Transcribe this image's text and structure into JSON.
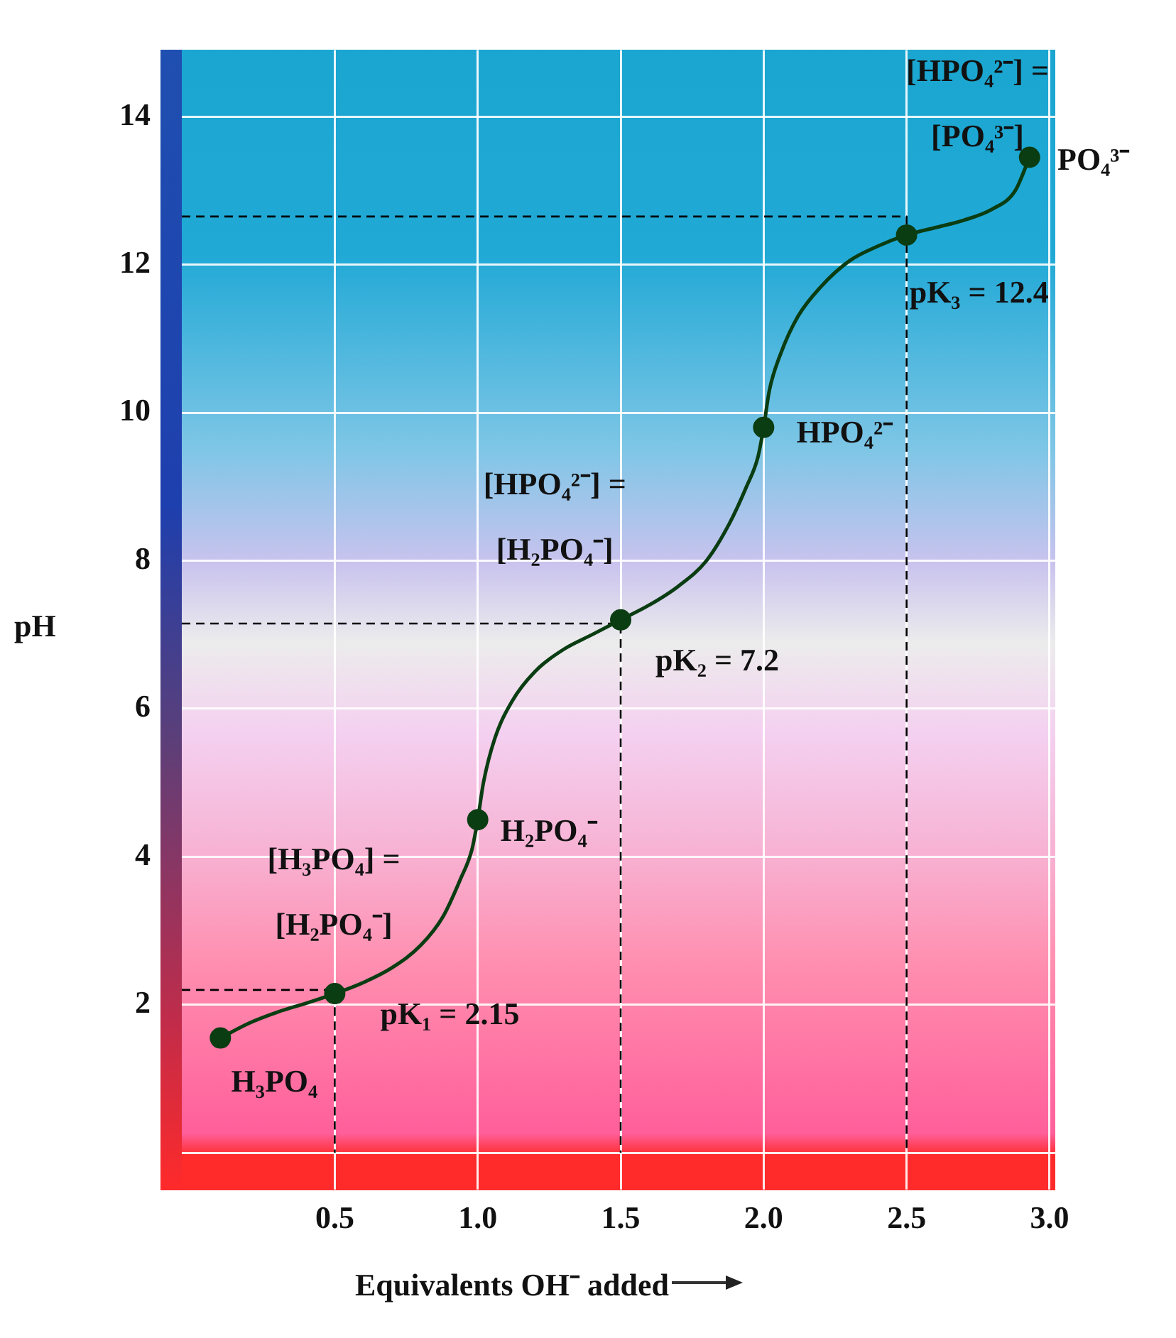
{
  "chart_data": {
    "type": "line",
    "xlabel": "Equivalents OH⁻ added",
    "ylabel": "pH",
    "xlim": [
      -0.035,
      3.02
    ],
    "ylim": [
      -0.5,
      14.9
    ],
    "xticks": [
      {
        "value": 0.5,
        "label": "0.5"
      },
      {
        "value": 1,
        "label": "1.0"
      },
      {
        "value": 1.5,
        "label": "1.5"
      },
      {
        "value": 2,
        "label": "2.0"
      },
      {
        "value": 2.5,
        "label": "2.5"
      },
      {
        "value": 3,
        "label": "3.0"
      }
    ],
    "yticks": [
      {
        "value": 0,
        "label": null
      },
      2,
      4,
      6,
      8,
      10,
      12,
      14
    ],
    "grid": true,
    "legend": false,
    "series": [
      {
        "color": "#0b3d12",
        "marker": "none",
        "x": [
          0.1,
          0.2,
          0.3,
          0.4,
          0.5,
          0.6,
          0.7,
          0.8,
          0.88,
          0.94,
          0.98,
          1.0,
          1.02,
          1.06,
          1.12,
          1.2,
          1.3,
          1.4,
          1.5,
          1.6,
          1.7,
          1.8,
          1.88,
          1.94,
          1.98,
          2.0,
          2.02,
          2.06,
          2.12,
          2.2,
          2.3,
          2.4,
          2.5,
          2.6,
          2.7,
          2.8,
          2.88,
          2.93
        ],
        "values": [
          1.55,
          1.75,
          1.9,
          2.02,
          2.15,
          2.3,
          2.5,
          2.8,
          3.2,
          3.7,
          4.1,
          4.5,
          5.0,
          5.6,
          6.1,
          6.5,
          6.8,
          7.0,
          7.2,
          7.4,
          7.65,
          8.0,
          8.5,
          9.0,
          9.4,
          9.8,
          10.3,
          10.8,
          11.3,
          11.7,
          12.05,
          12.25,
          12.4,
          12.5,
          12.6,
          12.75,
          13.0,
          13.45
        ]
      },
      {
        "type": "scatter",
        "color": "#0b3d12",
        "marker": "circle",
        "x": [
          0.1,
          0.5,
          1.0,
          1.5,
          2.0,
          2.5,
          2.93
        ],
        "values": [
          1.55,
          2.15,
          4.5,
          7.2,
          9.8,
          12.4,
          13.45
        ]
      },
      {
        "type": "line",
        "color": "#000000",
        "marker": "none",
        "line_style": "dashed",
        "x": [
          -0.035,
          0.5,
          0.5
        ],
        "values": [
          2.2,
          2.2,
          0
        ]
      },
      {
        "type": "line",
        "color": "#000000",
        "marker": "none",
        "line_style": "dashed",
        "x": [
          -0.035,
          1.5,
          1.5
        ],
        "values": [
          7.15,
          7.15,
          0
        ]
      },
      {
        "type": "line",
        "color": "#000000",
        "marker": "none",
        "line_style": "dashed",
        "x": [
          -0.035,
          2.5,
          2.5
        ],
        "values": [
          12.65,
          12.65,
          0
        ]
      }
    ],
    "annotations": [
      {
        "text": "H₃PO₄",
        "x": 0.1,
        "y": 1.55
      },
      "[H₃PO₄] =\n[H₂PO₄⁻]",
      {
        "text": "pK₁ = 2.15",
        "x": 0.5,
        "y": 2.15
      },
      {
        "text": "H₂PO₄⁻",
        "x": 1.0,
        "y": 4.5
      },
      "[HPO₄²⁻] =\n[H₂PO₄⁻]",
      {
        "text": "pK₂ = 7.2",
        "x": 1.5,
        "y": 7.2
      },
      {
        "text": "HPO₄²⁻",
        "x": 2.0,
        "y": 9.8
      },
      "[HPO₄²⁻] =\n[PO₄³⁻]",
      {
        "text": "pK₃ = 12.4",
        "x": 2.5,
        "y": 12.4
      },
      {
        "text": "PO₄³⁻",
        "x": 2.93,
        "y": 13.45
      }
    ]
  }
}
